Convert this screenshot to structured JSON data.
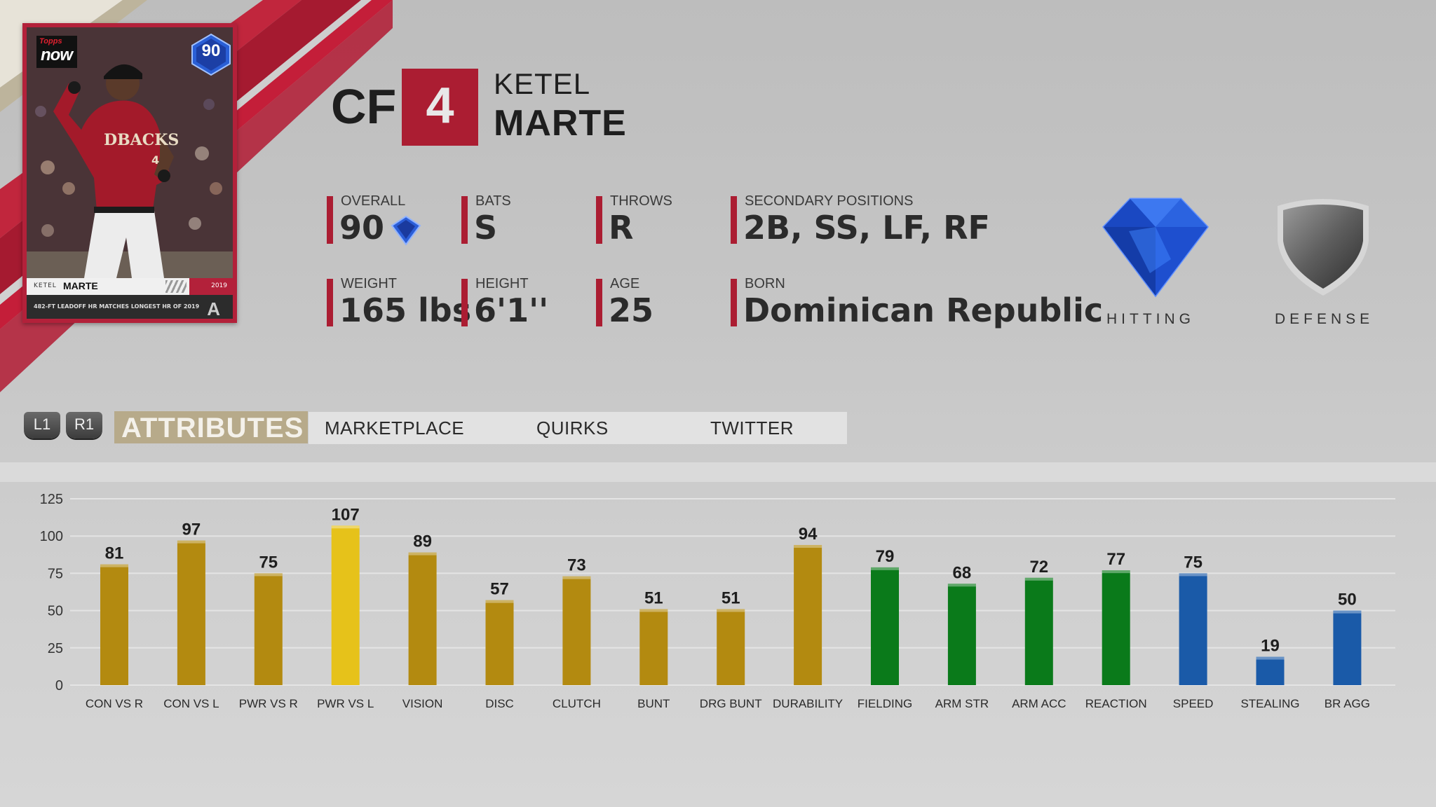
{
  "card": {
    "brand_top": "Topps",
    "brand_main": "now",
    "rating": "90",
    "first_name": "KETEL",
    "last_name": "MARTE",
    "year": "2019",
    "caption": "482-FT LEADOFF HR MATCHES LONGEST HR OF 2019",
    "team_logo": "A"
  },
  "player": {
    "position": "CF",
    "number": "4",
    "first_name": "KETEL",
    "last_name": "MARTE"
  },
  "info": {
    "overall": {
      "label": "OVERALL",
      "value": "90"
    },
    "bats": {
      "label": "BATS",
      "value": "S"
    },
    "throws": {
      "label": "THROWS",
      "value": "R"
    },
    "secondary": {
      "label": "SECONDARY POSITIONS",
      "value": "2B, SS, LF, RF"
    },
    "weight": {
      "label": "WEIGHT",
      "value": "165 lbs"
    },
    "height": {
      "label": "HEIGHT",
      "value": "6'1''"
    },
    "age": {
      "label": "AGE",
      "value": "25"
    },
    "born": {
      "label": "BORN",
      "value": "Dominican Republic"
    }
  },
  "badges": {
    "hitting": {
      "label": "HITTING",
      "icon": "diamond-gem-icon"
    },
    "defense": {
      "label": "DEFENSE",
      "icon": "silver-shield-icon"
    }
  },
  "nav": {
    "l1": "L1",
    "r1": "R1",
    "tabs": [
      "ATTRIBUTES",
      "MARKETPLACE",
      "QUIRKS",
      "TWITTER"
    ],
    "active": "ATTRIBUTES"
  },
  "colors": {
    "team_red": "#ab1d32",
    "hitting_bar": "#b38a10",
    "hitting_bar_highlight": "#e6c21a",
    "defense_bar": "#0a7a1a",
    "baserunning_bar": "#1a5aa8",
    "tab_active": "#b7aa8a"
  },
  "chart_data": {
    "type": "bar",
    "categories": [
      "CON VS R",
      "CON VS L",
      "PWR VS R",
      "PWR VS L",
      "VISION",
      "DISC",
      "CLUTCH",
      "BUNT",
      "DRG BUNT",
      "DURABILITY",
      "FIELDING",
      "ARM STR",
      "ARM ACC",
      "REACTION",
      "SPEED",
      "STEALING",
      "BR AGG"
    ],
    "values": [
      81,
      97,
      75,
      107,
      89,
      57,
      73,
      51,
      51,
      94,
      79,
      68,
      72,
      77,
      75,
      19,
      50
    ],
    "groups": [
      "hitting",
      "hitting",
      "hitting",
      "hitting",
      "hitting",
      "hitting",
      "hitting",
      "hitting",
      "hitting",
      "hitting",
      "defense",
      "defense",
      "defense",
      "defense",
      "baserunning",
      "baserunning",
      "baserunning"
    ],
    "highlight": [
      false,
      false,
      false,
      true,
      false,
      false,
      false,
      false,
      false,
      false,
      false,
      false,
      false,
      false,
      false,
      false,
      false
    ],
    "yticks": [
      0,
      25,
      50,
      75,
      100,
      125
    ],
    "ylim": [
      0,
      125
    ],
    "grid": true
  }
}
